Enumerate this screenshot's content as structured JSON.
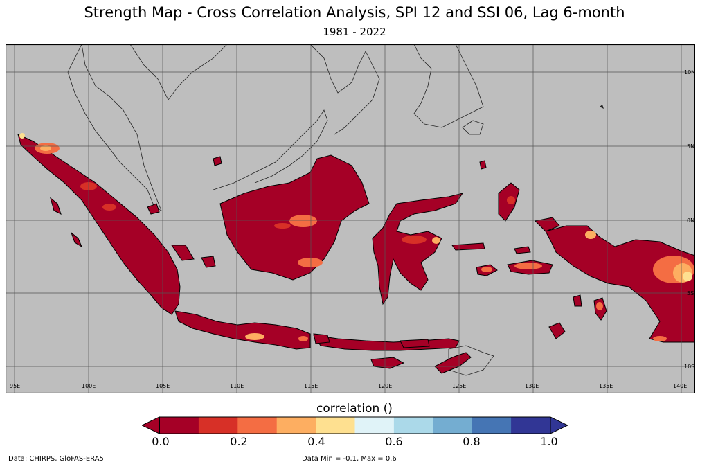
{
  "header": {
    "title": "Strength Map - Cross Correlation Analysis, SPI 12 and SSI 06, Lag 6-month",
    "subtitle": "1981 - 2022"
  },
  "map": {
    "lat_labels": [
      "10N",
      "5N",
      "0N",
      "5S",
      "10S"
    ],
    "lon_labels": [
      "95E",
      "100E",
      "105E",
      "110E",
      "115E",
      "120E",
      "125E",
      "130E",
      "135E",
      "140E"
    ],
    "ocean_color": "#bebebe",
    "gridline_color": "#555555",
    "dominant_color": "#a50026"
  },
  "legend": {
    "title": "correlation ()",
    "ticks": [
      "0.0",
      "0.2",
      "0.4",
      "0.6",
      "0.8",
      "1.0"
    ],
    "colors": [
      "#a50026",
      "#d73027",
      "#f46d43",
      "#fdae61",
      "#fee090",
      "#e0f3f8",
      "#abd9e9",
      "#74add1",
      "#4575b4",
      "#313695"
    ],
    "under_color": "#a50026",
    "over_color": "#313695"
  },
  "footer": {
    "data_source": "Data: CHIRPS, GloFAS-ERA5",
    "data_range": "Data Min = -0.1, Max = 0.6"
  }
}
